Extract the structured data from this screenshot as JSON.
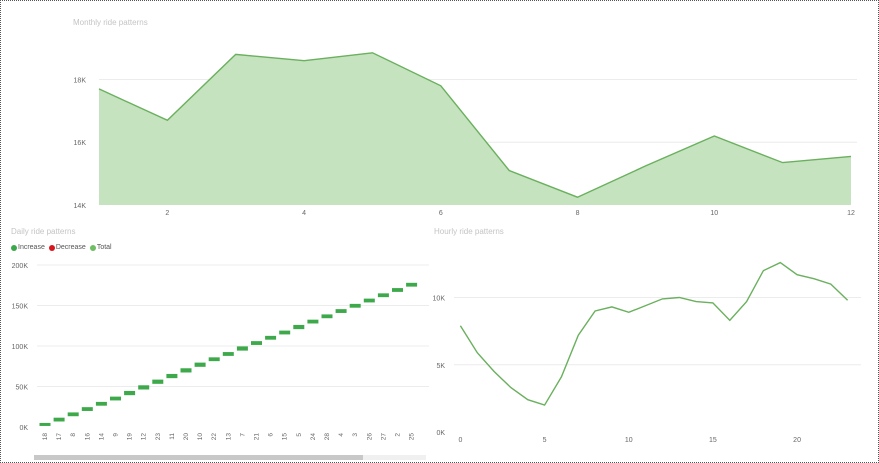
{
  "colors": {
    "area_fill": "#c5e3bf",
    "line": "#6ab05e",
    "increase": "#3ba84a",
    "decrease": "#d9141c",
    "total": "#6fbe63",
    "waterfall_bar": "#3ea94b"
  },
  "chart_data": [
    {
      "id": "monthly",
      "type": "area",
      "title": "Monthly ride patterns",
      "x": [
        1,
        2,
        3,
        4,
        5,
        6,
        7,
        8,
        9,
        10,
        11,
        12
      ],
      "values": [
        17700,
        16700,
        18800,
        18600,
        18850,
        17800,
        15100,
        14250,
        15250,
        16200,
        15350,
        15550
      ],
      "xticks": [
        2,
        4,
        6,
        8,
        10,
        12
      ],
      "yticks": [
        14000,
        16000,
        18000
      ],
      "ytick_labels": [
        "14K",
        "16K",
        "18K"
      ],
      "xlim": [
        1,
        12
      ],
      "ylim": [
        14000,
        19800
      ],
      "grid": true
    },
    {
      "id": "daily",
      "type": "bar",
      "subtype": "waterfall",
      "title": "Daily ride patterns",
      "legend": [
        "Increase",
        "Decrease",
        "Total"
      ],
      "legend_position": "top-left",
      "categories": [
        "18",
        "17",
        "8",
        "16",
        "14",
        "9",
        "19",
        "12",
        "23",
        "11",
        "20",
        "10",
        "22",
        "13",
        "7",
        "21",
        "6",
        "15",
        "5",
        "24",
        "28",
        "4",
        "3",
        "26",
        "27",
        "2",
        "25"
      ],
      "cumulative_values": [
        5000,
        11500,
        18000,
        24500,
        31000,
        37500,
        44500,
        51500,
        58500,
        65500,
        72500,
        79500,
        86000,
        92500,
        99500,
        106000,
        112500,
        119000,
        126000,
        132500,
        139000,
        145500,
        152000,
        158500,
        165000,
        171500,
        178000
      ],
      "yticks": [
        0,
        50000,
        100000,
        150000,
        200000
      ],
      "ytick_labels": [
        "0K",
        "50K",
        "100K",
        "150K",
        "200K"
      ],
      "ylim": [
        0,
        200000
      ],
      "grid": true,
      "scroll_fraction": 0.84
    },
    {
      "id": "hourly",
      "type": "line",
      "title": "Hourly ride patterns",
      "x": [
        0,
        1,
        2,
        3,
        4,
        5,
        6,
        7,
        8,
        9,
        10,
        11,
        12,
        13,
        14,
        15,
        16,
        17,
        18,
        19,
        20,
        21,
        22,
        23
      ],
      "values": [
        7900,
        5900,
        4500,
        3300,
        2400,
        2000,
        4100,
        7200,
        9000,
        9300,
        8900,
        9400,
        9900,
        10000,
        9700,
        9600,
        8300,
        9700,
        12000,
        12600,
        11700,
        11400,
        11000,
        9800
      ],
      "xticks": [
        0,
        5,
        10,
        15,
        20
      ],
      "yticks": [
        0,
        5000,
        10000
      ],
      "ytick_labels": [
        "0K",
        "5K",
        "10K"
      ],
      "xlim": [
        -0.5,
        23.5
      ],
      "ylim": [
        0,
        14500
      ],
      "grid": true
    }
  ]
}
